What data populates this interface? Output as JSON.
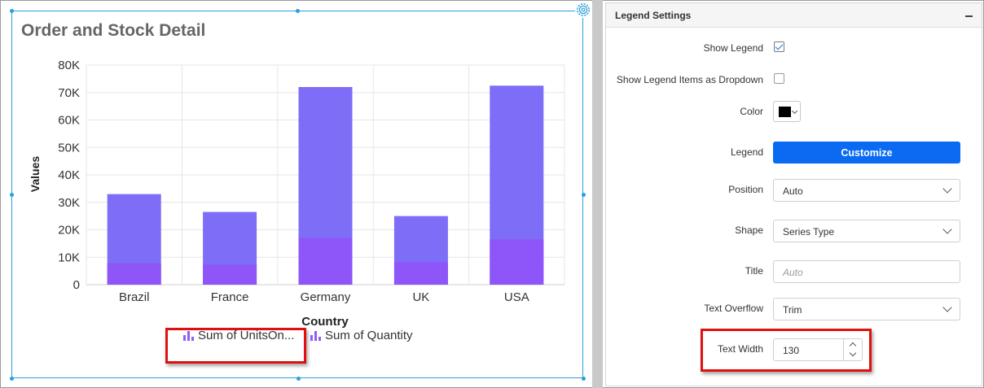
{
  "widget": {
    "title": "Order and Stock Detail"
  },
  "chart_data": {
    "type": "bar",
    "title": "Order and Stock Detail",
    "xlabel": "Country",
    "ylabel": "Values",
    "categories": [
      "Brazil",
      "France",
      "Germany",
      "UK",
      "USA"
    ],
    "y_ticks": [
      "0",
      "10K",
      "20K",
      "30K",
      "40K",
      "50K",
      "60K",
      "70K",
      "80K"
    ],
    "ylim": [
      0,
      80000
    ],
    "grid": true,
    "legend_position": "bottom",
    "series": [
      {
        "name": "Sum of UnitsOn...",
        "color": "#7e6df6",
        "values": [
          33000,
          26500,
          72000,
          25000,
          72500
        ]
      },
      {
        "name": "Sum of Quantity",
        "color": "#8e55f8",
        "values": [
          7800,
          7300,
          17000,
          8200,
          16500
        ]
      }
    ]
  },
  "legend": {
    "items": [
      {
        "label": "Sum of UnitsOn...",
        "icon": "bar-series-icon"
      },
      {
        "label": "Sum of Quantity",
        "icon": "bar-series-icon"
      }
    ]
  },
  "panel": {
    "title": "Legend Settings",
    "collapse_icon": "minus-icon",
    "show_legend": {
      "label": "Show Legend",
      "checked": true
    },
    "legend_dropdown": {
      "label": "Show Legend Items as Dropdown",
      "checked": false
    },
    "color": {
      "label": "Color",
      "value": "#000000"
    },
    "legend": {
      "label": "Legend",
      "button": "Customize"
    },
    "position": {
      "label": "Position",
      "value": "Auto"
    },
    "shape": {
      "label": "Shape",
      "value": "Series Type"
    },
    "title_field": {
      "label": "Title",
      "placeholder": "Auto"
    },
    "text_overflow": {
      "label": "Text Overflow",
      "value": "Trim"
    },
    "text_width": {
      "label": "Text Width",
      "value": "130"
    }
  }
}
